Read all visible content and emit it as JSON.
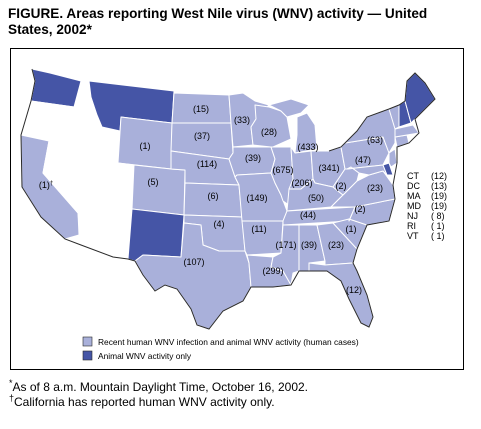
{
  "title": "FIGURE. Areas reporting West Nile virus (WNV) activity — United States, 2002*",
  "colors": {
    "human": "#a9b0da",
    "animal": "#4555a6",
    "none": "#ffffff",
    "border": "#ffffff",
    "outline": "#2a2a2a"
  },
  "state_labels": [
    {
      "state": "WA",
      "text": ""
    },
    {
      "state": "MT",
      "text": ""
    },
    {
      "state": "ND",
      "text": "(15)"
    },
    {
      "state": "MN",
      "text": "(33)"
    },
    {
      "state": "WY",
      "text": "(1)"
    },
    {
      "state": "SD",
      "text": "(37)"
    },
    {
      "state": "WI",
      "text": "(28)"
    },
    {
      "state": "MI",
      "text": "(433)"
    },
    {
      "state": "NY",
      "text": "(63)"
    },
    {
      "state": "PA",
      "text": "(47)"
    },
    {
      "state": "NE",
      "text": "(114)"
    },
    {
      "state": "IA",
      "text": "(39)"
    },
    {
      "state": "IL",
      "text": "(675)"
    },
    {
      "state": "IN",
      "text": "(206)"
    },
    {
      "state": "OH",
      "text": "(341)"
    },
    {
      "state": "WV",
      "text": "(2)"
    },
    {
      "state": "VA",
      "text": "(23)"
    },
    {
      "state": "CA",
      "text": "(1)",
      "sup": "†"
    },
    {
      "state": "CO",
      "text": "(5)"
    },
    {
      "state": "KS",
      "text": "(6)"
    },
    {
      "state": "MO",
      "text": "(149)"
    },
    {
      "state": "KY",
      "text": "(50)"
    },
    {
      "state": "TN",
      "text": "(44)"
    },
    {
      "state": "NC",
      "text": "(2)"
    },
    {
      "state": "OK",
      "text": "(4)"
    },
    {
      "state": "AR",
      "text": "(11)"
    },
    {
      "state": "SC",
      "text": "(1)"
    },
    {
      "state": "MS",
      "text": "(171)"
    },
    {
      "state": "AL",
      "text": "(39)"
    },
    {
      "state": "GA",
      "text": "(23)"
    },
    {
      "state": "TX",
      "text": "(107)"
    },
    {
      "state": "LA",
      "text": "(299)"
    },
    {
      "state": "FL",
      "text": "(12)"
    }
  ],
  "small_states": [
    {
      "abbr": "CT",
      "count": "(12)"
    },
    {
      "abbr": "DC",
      "count": "(13)"
    },
    {
      "abbr": "MA",
      "count": "(19)"
    },
    {
      "abbr": "MD",
      "count": "(19)"
    },
    {
      "abbr": "NJ",
      "count": "( 8)"
    },
    {
      "abbr": "RI",
      "count": "( 1)"
    },
    {
      "abbr": "VT",
      "count": "( 1)"
    }
  ],
  "legend": [
    {
      "key": "human",
      "label": "Recent human WNV infection and animal WNV activity (human cases)"
    },
    {
      "key": "animal",
      "label": "Animal WNV activity only"
    }
  ],
  "footnotes": [
    {
      "mark": "*",
      "text": "As of 8 a.m. Mountain Daylight Time, October 16, 2002."
    },
    {
      "mark": "†",
      "text": "California has reported human WNV activity only."
    }
  ]
}
